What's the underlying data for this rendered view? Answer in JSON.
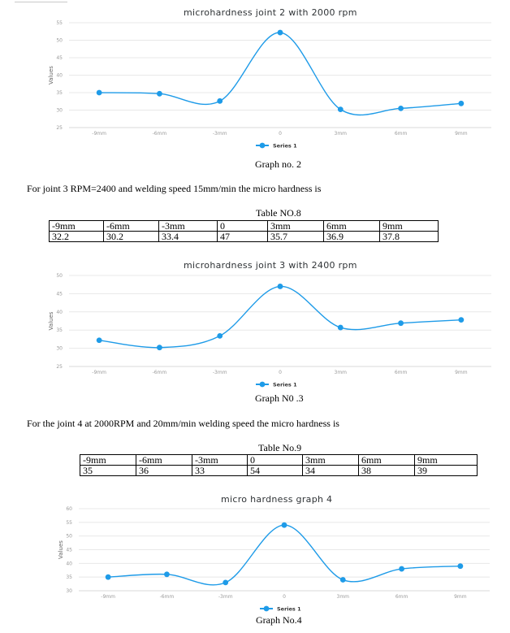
{
  "graph2": {
    "caption": "Graph no. 2",
    "chart_data": {
      "type": "line",
      "title": "microhardness joint 2 with 2000 rpm",
      "ylabel": "Values",
      "categories": [
        "-9mm",
        "-6mm",
        "-3mm",
        "0",
        "3mm",
        "6mm",
        "9mm"
      ],
      "series": [
        {
          "name": "Series 1",
          "values": [
            35,
            34.7,
            32.6,
            52.2,
            30.2,
            30.5,
            31.9
          ]
        }
      ],
      "ylim": [
        25,
        55
      ],
      "yticks": [
        25,
        30,
        35,
        40,
        45,
        50,
        55
      ],
      "grid": true,
      "legend": "bottom",
      "color": "#1e9be8"
    }
  },
  "joint3": {
    "intro": "For joint 3  RPM=2400  and welding speed 15mm/min the micro hardness is",
    "table_title": "Table NO.8",
    "table_rows": [
      [
        "-9mm",
        "-6mm",
        "-3mm",
        "0",
        "3mm",
        "6mm",
        "9mm"
      ],
      [
        "32.2",
        "30.2",
        "33.4",
        "47",
        "35.7",
        "36.9",
        "37.8"
      ]
    ]
  },
  "graph3": {
    "caption": "Graph N0 .3",
    "chart_data": {
      "type": "line",
      "title": "microhardness joint 3 with 2400 rpm",
      "ylabel": "Values",
      "categories": [
        "-9mm",
        "-6mm",
        "-3mm",
        "0",
        "3mm",
        "6mm",
        "9mm"
      ],
      "series": [
        {
          "name": "Series 1",
          "values": [
            32.2,
            30.2,
            33.4,
            47,
            35.7,
            36.9,
            37.8
          ]
        }
      ],
      "ylim": [
        25,
        50
      ],
      "yticks": [
        25,
        30,
        35,
        40,
        45,
        50
      ],
      "grid": true,
      "legend": "bottom",
      "color": "#1e9be8"
    }
  },
  "joint4": {
    "intro": "For the joint 4 at 2000RPM and 20mm/min welding speed the micro hardness is",
    "table_title": "Table No.9",
    "table_rows": [
      [
        "-9mm",
        "-6mm",
        "-3mm",
        "0",
        "3mm",
        "6mm",
        "9mm"
      ],
      [
        "35",
        "36",
        "33",
        "54",
        "34",
        "38",
        "39"
      ]
    ]
  },
  "graph4": {
    "caption": "Graph No.4",
    "chart_data": {
      "type": "line",
      "title": "micro hardness graph 4",
      "ylabel": "Values",
      "categories": [
        "-9mm",
        "-6mm",
        "-3mm",
        "0",
        "3mm",
        "6mm",
        "9mm"
      ],
      "series": [
        {
          "name": "Series 1",
          "values": [
            35,
            36,
            33,
            54,
            34,
            38,
            39
          ]
        }
      ],
      "ylim": [
        30,
        60
      ],
      "yticks": [
        30,
        35,
        40,
        45,
        50,
        55,
        60
      ],
      "grid": true,
      "legend": "bottom",
      "color": "#1e9be8"
    }
  }
}
